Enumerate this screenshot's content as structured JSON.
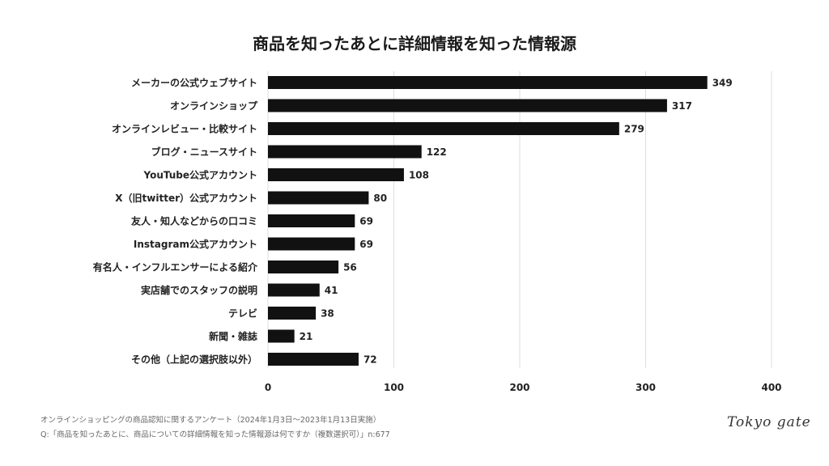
{
  "chart_data": {
    "type": "bar",
    "orientation": "horizontal",
    "title": "商品を知ったあとに詳細情報を知った情報源",
    "categories": [
      "メーカーの公式ウェブサイト",
      "オンラインショップ",
      "オンラインレビュー・比較サイト",
      "ブログ・ニュースサイト",
      "YouTube公式アカウント",
      "X（旧twitter）公式アカウント",
      "友人・知人などからの口コミ",
      "Instagram公式アカウント",
      "有名人・インフルエンサーによる紹介",
      "実店舗でのスタッフの説明",
      "テレビ",
      "新聞・雑誌",
      "その他（上記の選択肢以外）"
    ],
    "values": [
      349,
      317,
      279,
      122,
      108,
      80,
      69,
      69,
      56,
      41,
      38,
      21,
      72
    ],
    "xlim": [
      0,
      400
    ],
    "xticks": [
      0,
      100,
      200,
      300,
      400
    ],
    "grid": true,
    "bar_color": "#111111",
    "grid_color": "#dddddd"
  },
  "footer": {
    "source": "オンラインショッピングの商品認知に関するアンケート（2024年1月3日〜2023年1月13日実施）",
    "question": "Q:「商品を知ったあとに、商品についての詳細情報を知った情報源は何ですか（複数選択可）」n:677"
  },
  "logo": "Tokyo gate"
}
